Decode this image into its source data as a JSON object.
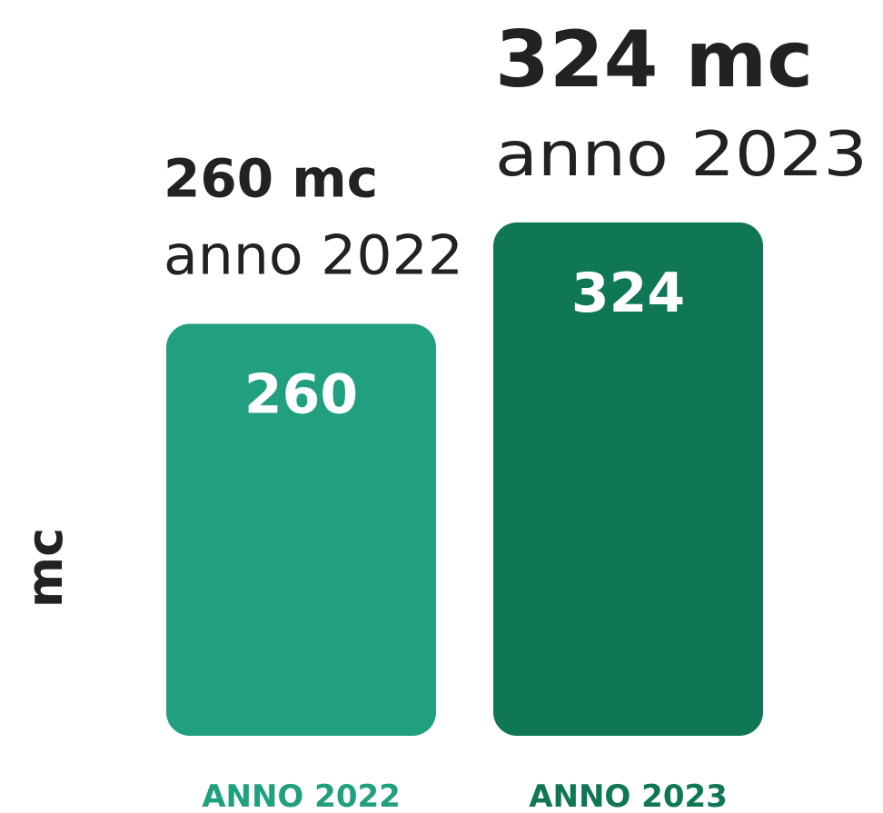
{
  "chart_data": {
    "type": "bar",
    "ylabel": "mc",
    "categories": [
      "ANNO 2022",
      "ANNO 2023"
    ],
    "values": [
      260,
      324
    ],
    "colors": [
      "#20a07f",
      "#0f7656"
    ],
    "annotations": [
      {
        "label": "260 mc",
        "sublabel": "anno 2022"
      },
      {
        "label": "324 mc",
        "sublabel": "anno 2023"
      }
    ],
    "ylim": [
      0,
      340
    ]
  }
}
